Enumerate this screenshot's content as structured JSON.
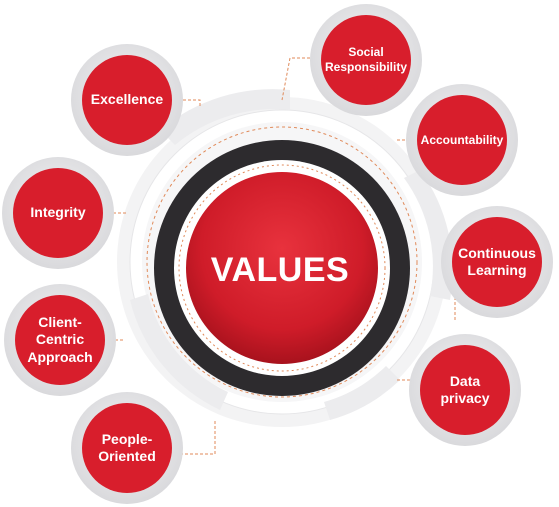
{
  "center": {
    "title": "VALUES"
  },
  "values": [
    {
      "key": "excellence",
      "label": "Excellence"
    },
    {
      "key": "integrity",
      "label": "Integrity"
    },
    {
      "key": "client-centric",
      "label": "Client-\nCentric\nApproach"
    },
    {
      "key": "people-oriented",
      "label": "People-\nOriented"
    },
    {
      "key": "social-responsibility",
      "label": "Social\nResponsibility"
    },
    {
      "key": "accountability",
      "label": "Accountability"
    },
    {
      "key": "continuous-learning",
      "label": "Continuous\nLearning"
    },
    {
      "key": "data-privacy",
      "label": "Data\nprivacy"
    }
  ],
  "colors": {
    "accent_red": "#d81e2c",
    "ring_dark": "#2d2b2e",
    "ring_light": "#f1f1f2",
    "bubble_rim": "#e3e3e5",
    "connector": "#e08a5a"
  }
}
